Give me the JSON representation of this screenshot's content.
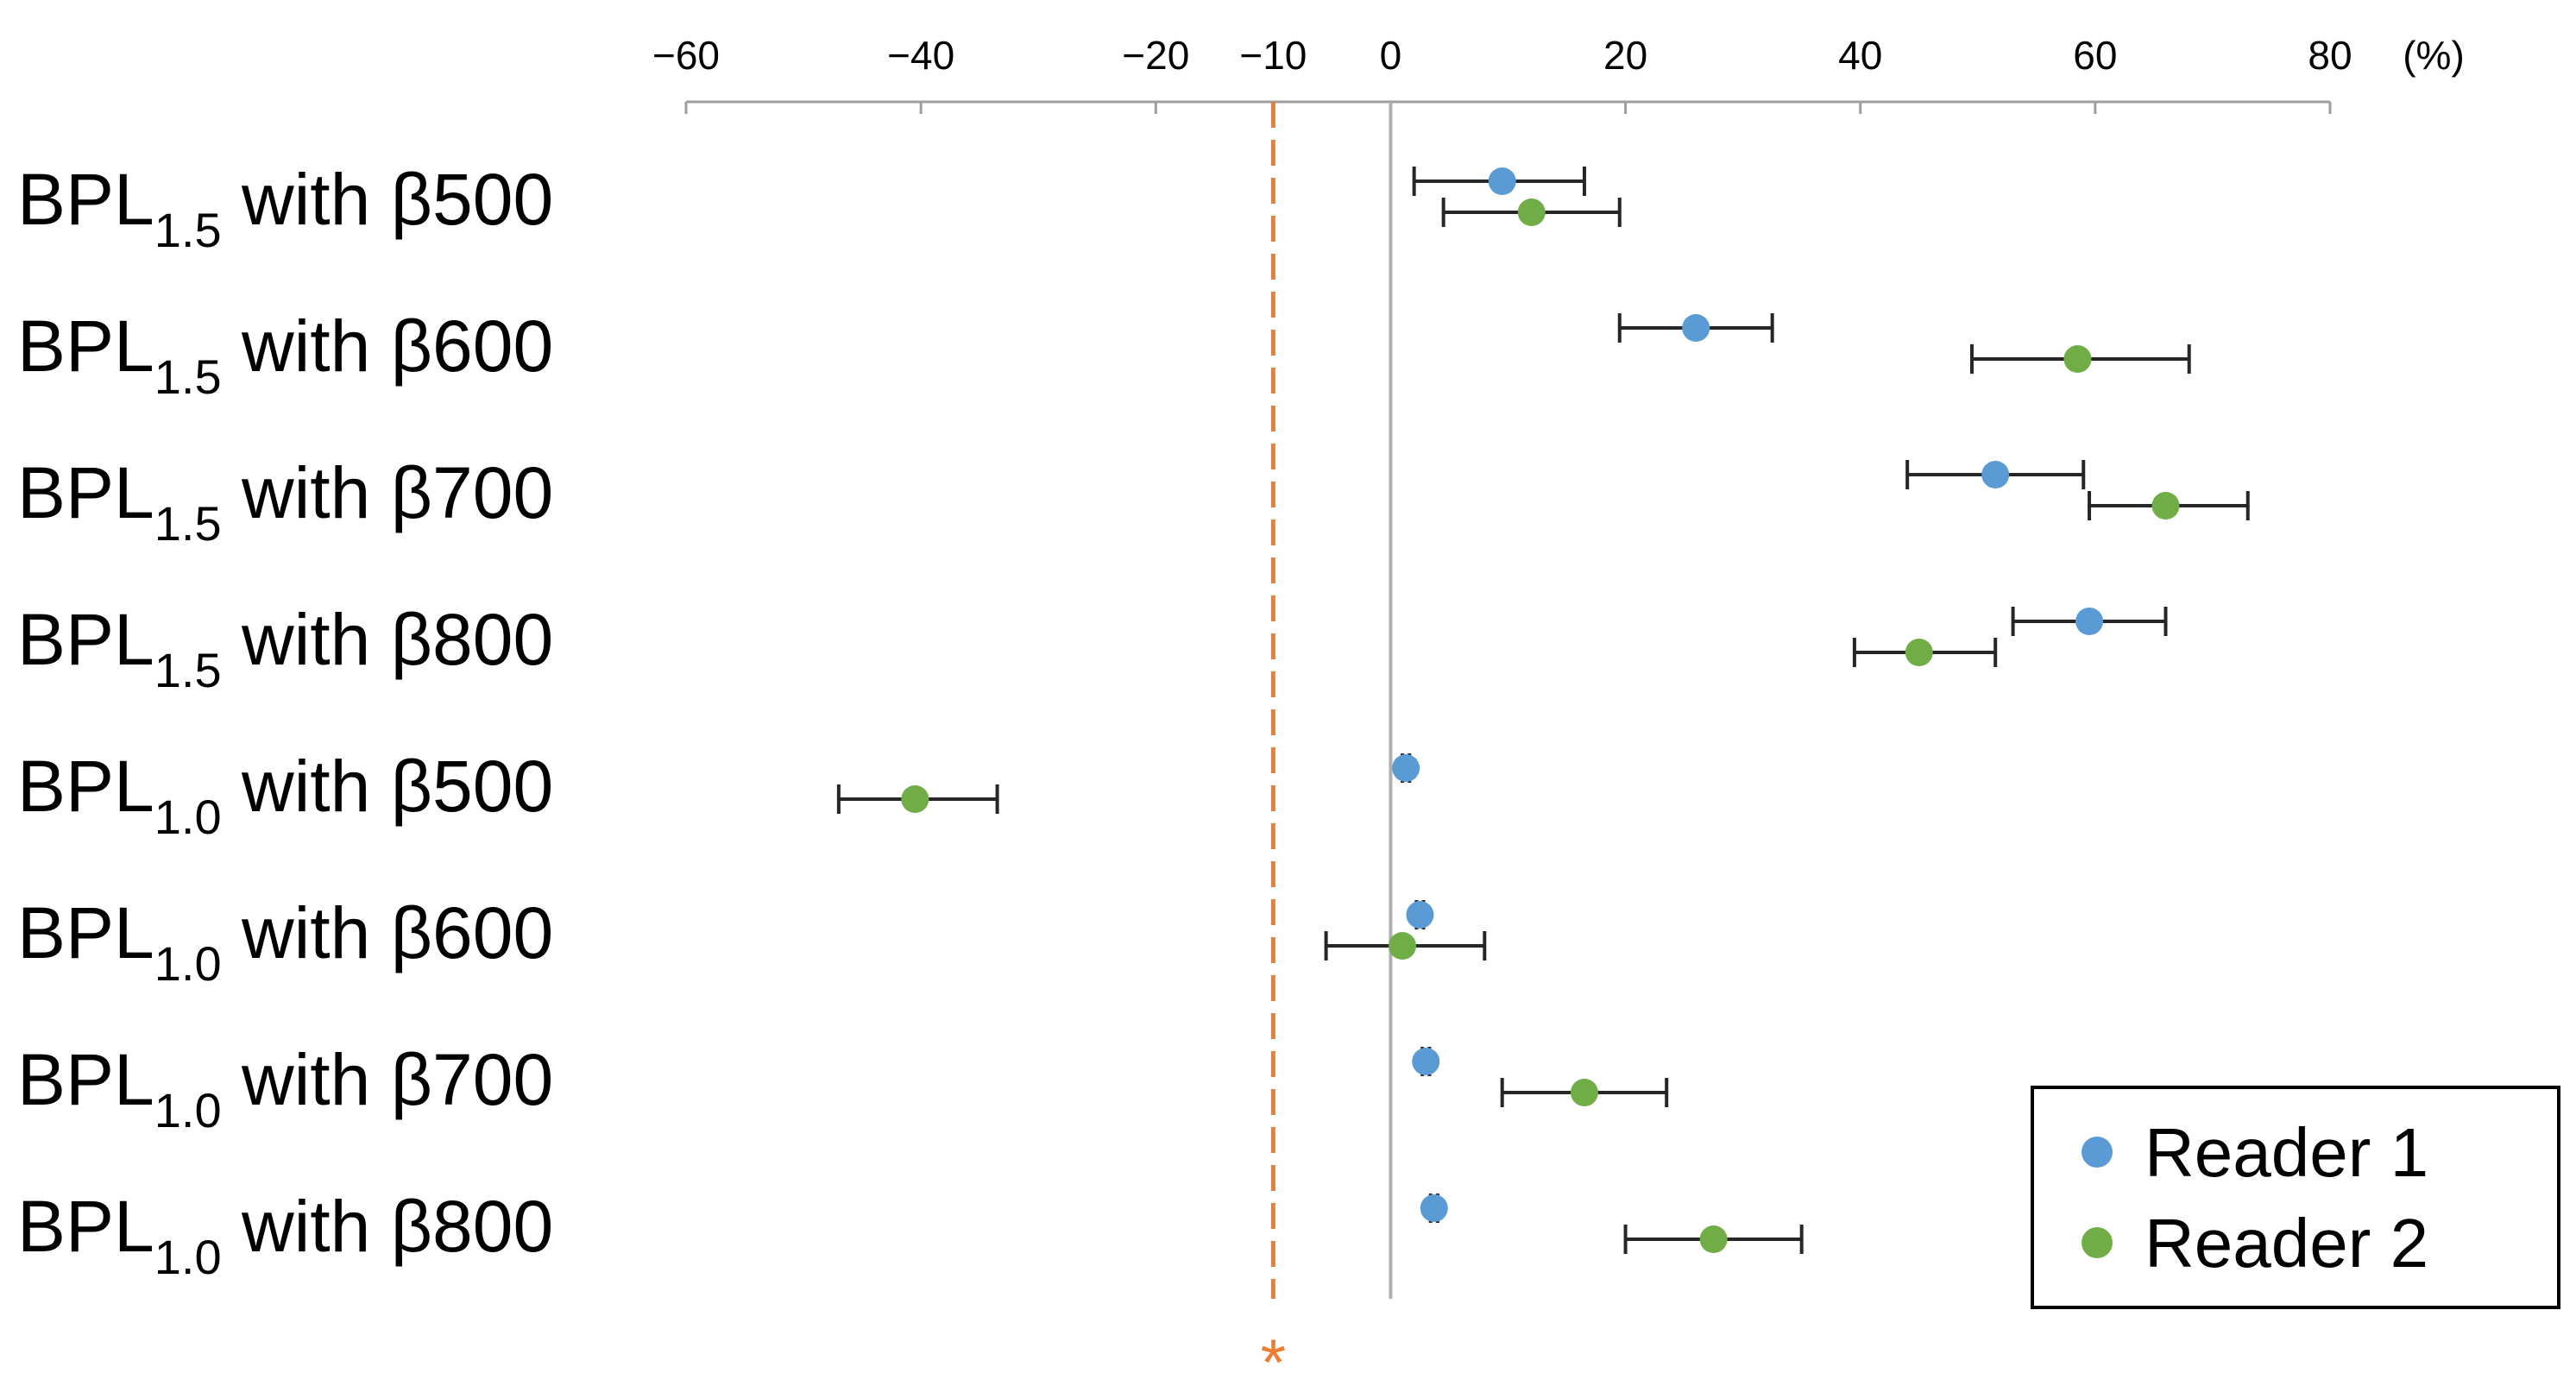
{
  "chart_data": {
    "type": "forest",
    "x_ticks": [
      -60,
      -40,
      -20,
      -10,
      0,
      20,
      40,
      60,
      80
    ],
    "x_tick_labels": [
      "−60",
      "−40",
      "−20",
      "−10",
      "0",
      "20",
      "40",
      "60",
      "80"
    ],
    "x_unit": "(%)",
    "xlim": [
      -60,
      80
    ],
    "reference_line": -10,
    "reference_marker": "*",
    "rows": [
      {
        "base": "BPL",
        "sub": "1.5",
        "suffix": " with β500"
      },
      {
        "base": "BPL",
        "sub": "1.5",
        "suffix": " with β600"
      },
      {
        "base": "BPL",
        "sub": "1.5",
        "suffix": " with β700"
      },
      {
        "base": "BPL",
        "sub": "1.5",
        "suffix": " with β800"
      },
      {
        "base": "BPL",
        "sub": "1.0",
        "suffix": " with β500"
      },
      {
        "base": "BPL",
        "sub": "1.0",
        "suffix": " with β600"
      },
      {
        "base": "BPL",
        "sub": "1.0",
        "suffix": " with β700"
      },
      {
        "base": "BPL",
        "sub": "1.0",
        "suffix": " with β800"
      }
    ],
    "series": [
      {
        "name": "Reader 1",
        "color": "#5b9bd5",
        "points": [
          {
            "value": 9.5,
            "ci": [
              2,
              16.5
            ]
          },
          {
            "value": 26,
            "ci": [
              19.5,
              32.5
            ]
          },
          {
            "value": 51.5,
            "ci": [
              44,
              59
            ]
          },
          {
            "value": 59.5,
            "ci": [
              53,
              66
            ]
          },
          {
            "value": 1.3,
            "ci": [
              1.0,
              1.6
            ]
          },
          {
            "value": 2.5,
            "ci": [
              2.2,
              2.8
            ]
          },
          {
            "value": 3.0,
            "ci": [
              2.7,
              3.3
            ]
          },
          {
            "value": 3.7,
            "ci": [
              3.4,
              4.0
            ]
          }
        ]
      },
      {
        "name": "Reader 2",
        "color": "#70ad47",
        "points": [
          {
            "value": 12,
            "ci": [
              4.5,
              19.5
            ]
          },
          {
            "value": 58.5,
            "ci": [
              49.5,
              68
            ]
          },
          {
            "value": 66,
            "ci": [
              59.5,
              73
            ]
          },
          {
            "value": 45,
            "ci": [
              39.5,
              51.5
            ]
          },
          {
            "value": -40.5,
            "ci": [
              -47,
              -33.5
            ]
          },
          {
            "value": 1.0,
            "ci": [
              -5.5,
              8
            ]
          },
          {
            "value": 16.5,
            "ci": [
              9.5,
              23.5
            ]
          },
          {
            "value": 27.5,
            "ci": [
              20,
              35
            ]
          }
        ]
      }
    ],
    "legend": {
      "position": "bottom-right",
      "entries": [
        "Reader 1",
        "Reader 2"
      ]
    }
  }
}
